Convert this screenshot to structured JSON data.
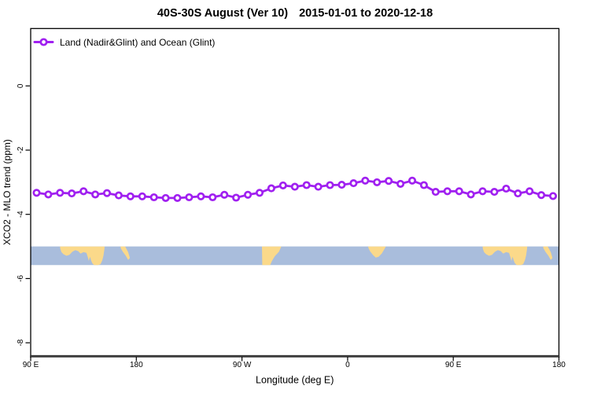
{
  "title": {
    "range": "40S-30S August (Ver 10)",
    "dates": "2015-01-01 to 2020-12-18"
  },
  "legend": {
    "label": "Land (Nadir&Glint) and Ocean (Glint)",
    "symbol": "open-circle-on-line",
    "position": "top-left"
  },
  "axes": {
    "xlabel": "Longitude (deg E)",
    "ylabel": "XCO2 - MLO trend (ppm)"
  },
  "colors": {
    "series": "#A020F0",
    "marker_fill": "#FFFFFF",
    "ocean": "#A9BDDC",
    "land": "#FBD98A",
    "axis": "#000000",
    "bottom_axis_line": "#3F3F3F",
    "background": "#FFFFFF"
  },
  "chart_data": {
    "type": "line",
    "title": "40S-30S August (Ver 10)   2015-01-01 to 2020-12-18",
    "xlabel": "Longitude (deg E)",
    "ylabel": "XCO2 - MLO trend (ppm)",
    "xlim": [
      90,
      540
    ],
    "ylim": [
      -8.4,
      1.8
    ],
    "grid": false,
    "legend_position": "top-left",
    "x_ticks": [
      {
        "value": 90,
        "label": "90 E"
      },
      {
        "value": 180,
        "label": "180"
      },
      {
        "value": 270,
        "label": "90 W"
      },
      {
        "value": 360,
        "label": "0"
      },
      {
        "value": 450,
        "label": "90 E"
      },
      {
        "value": 540,
        "label": "180"
      }
    ],
    "y_ticks": [
      {
        "value": 0,
        "label": "0"
      },
      {
        "value": -2,
        "label": "-2"
      },
      {
        "value": -4,
        "label": "-4"
      },
      {
        "value": -6,
        "label": "-6"
      },
      {
        "value": -8,
        "label": "-8"
      }
    ],
    "series": [
      {
        "name": "Land (Nadir&Glint) and Ocean (Glint)",
        "color": "#A020F0",
        "marker": "open-circle",
        "x": [
          95,
          105,
          115,
          125,
          135,
          145,
          155,
          165,
          175,
          185,
          195,
          205,
          215,
          225,
          235,
          245,
          255,
          265,
          275,
          285,
          295,
          305,
          315,
          325,
          335,
          345,
          355,
          365,
          375,
          385,
          395,
          405,
          415,
          425,
          435,
          445,
          455,
          465,
          475,
          485,
          495,
          505,
          515,
          525,
          535
        ],
        "values": [
          -3.33,
          -3.38,
          -3.33,
          -3.35,
          -3.28,
          -3.38,
          -3.34,
          -3.41,
          -3.44,
          -3.44,
          -3.47,
          -3.49,
          -3.49,
          -3.47,
          -3.44,
          -3.47,
          -3.39,
          -3.48,
          -3.39,
          -3.33,
          -3.19,
          -3.1,
          -3.14,
          -3.09,
          -3.14,
          -3.09,
          -3.08,
          -3.03,
          -2.95,
          -3.0,
          -2.96,
          -3.05,
          -2.95,
          -3.09,
          -3.3,
          -3.28,
          -3.28,
          -3.38,
          -3.28,
          -3.3,
          -3.2,
          -3.35,
          -3.28,
          -3.4,
          -3.43
        ]
      }
    ],
    "map_band": {
      "description": "world-map strip of the 40S-30S latitude band",
      "y_top": -5.0,
      "y_bottom": -5.58,
      "ocean_color": "#A9BDDC",
      "land_color": "#FBD98A",
      "land_patches": [
        {
          "name": "australia",
          "points": [
            [
              115,
              0
            ],
            [
              153,
              0
            ],
            [
              152.8,
              0.15
            ],
            [
              152,
              0.5
            ],
            [
              151,
              0.75
            ],
            [
              149.5,
              0.95
            ],
            [
              147.5,
              1
            ],
            [
              144,
              1
            ],
            [
              142.5,
              0.9
            ],
            [
              141.5,
              0.75
            ],
            [
              140.5,
              0.55
            ],
            [
              139.5,
              0.78
            ],
            [
              138.8,
              0.6
            ],
            [
              137.5,
              0.35
            ],
            [
              135,
              0.3
            ],
            [
              132.5,
              0.38
            ],
            [
              130.5,
              0.25
            ],
            [
              128,
              0.2
            ],
            [
              125.5,
              0.28
            ],
            [
              123,
              0.45
            ],
            [
              120.5,
              0.5
            ],
            [
              118,
              0.42
            ],
            [
              116.2,
              0.3
            ],
            [
              115.2,
              0.12
            ]
          ]
        },
        {
          "name": "new-zealand",
          "points": [
            [
              166.5,
              0
            ],
            [
              170.5,
              0
            ],
            [
              173,
              0.3
            ],
            [
              174.5,
              0.62
            ],
            [
              173,
              0.72
            ],
            [
              171,
              0.5
            ],
            [
              168.5,
              0.28
            ],
            [
              166.8,
              0.1
            ]
          ]
        },
        {
          "name": "south-america",
          "points": [
            [
              287,
              0
            ],
            [
              303.5,
              0
            ],
            [
              301.5,
              0.28
            ],
            [
              298,
              0.52
            ],
            [
              295.5,
              0.78
            ],
            [
              294,
              1
            ],
            [
              287.3,
              1
            ]
          ]
        },
        {
          "name": "south-africa",
          "points": [
            [
              377.5,
              0
            ],
            [
              392.5,
              0
            ],
            [
              391,
              0.18
            ],
            [
              389,
              0.38
            ],
            [
              386.5,
              0.55
            ],
            [
              384,
              0.6
            ],
            [
              381.5,
              0.45
            ],
            [
              379,
              0.25
            ],
            [
              377.8,
              0.1
            ]
          ]
        },
        {
          "name": "australia-wrapped",
          "points": [
            [
              475,
              0
            ],
            [
              513,
              0
            ],
            [
              512.8,
              0.15
            ],
            [
              512,
              0.5
            ],
            [
              511,
              0.75
            ],
            [
              509.5,
              0.95
            ],
            [
              507.5,
              1
            ],
            [
              504,
              1
            ],
            [
              502.5,
              0.9
            ],
            [
              501.5,
              0.75
            ],
            [
              500.5,
              0.55
            ],
            [
              499.5,
              0.78
            ],
            [
              498.8,
              0.6
            ],
            [
              497.5,
              0.35
            ],
            [
              495,
              0.3
            ],
            [
              492.5,
              0.38
            ],
            [
              490.5,
              0.25
            ],
            [
              488,
              0.2
            ],
            [
              485.5,
              0.28
            ],
            [
              483,
              0.45
            ],
            [
              480.5,
              0.5
            ],
            [
              478,
              0.42
            ],
            [
              476.2,
              0.3
            ],
            [
              475.2,
              0.12
            ]
          ]
        },
        {
          "name": "new-zealand-wrapped",
          "points": [
            [
              526.5,
              0
            ],
            [
              530.5,
              0
            ],
            [
              533,
              0.3
            ],
            [
              534.5,
              0.62
            ],
            [
              533,
              0.72
            ],
            [
              531,
              0.5
            ],
            [
              528.5,
              0.28
            ],
            [
              526.8,
              0.1
            ]
          ]
        }
      ]
    }
  }
}
